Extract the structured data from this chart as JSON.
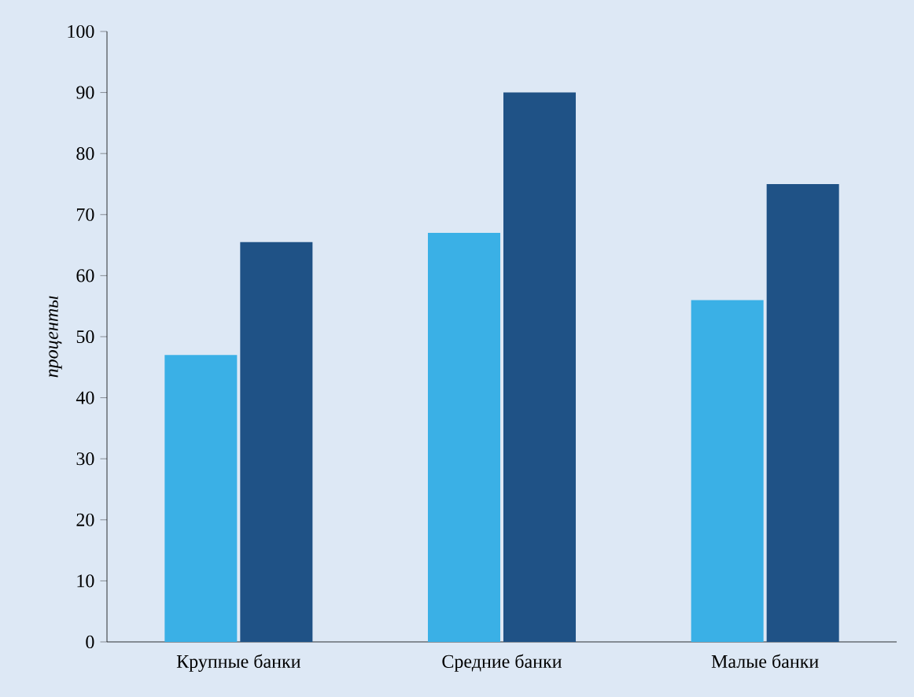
{
  "chart_data": {
    "type": "bar",
    "ylabel": "*проценты*",
    "categories": [
      "Крупные банки",
      "Средние банки",
      "Малые банки"
    ],
    "series": [
      {
        "color": "#3ab0e6",
        "values": [
          47,
          67,
          56
        ]
      },
      {
        "color": "#1f5286",
        "values": [
          65.5,
          90,
          75
        ]
      }
    ],
    "ylim": [
      0,
      100
    ],
    "yticks": [
      0,
      10,
      20,
      30,
      40,
      50,
      60,
      70,
      80,
      90,
      100
    ],
    "grid": false
  }
}
